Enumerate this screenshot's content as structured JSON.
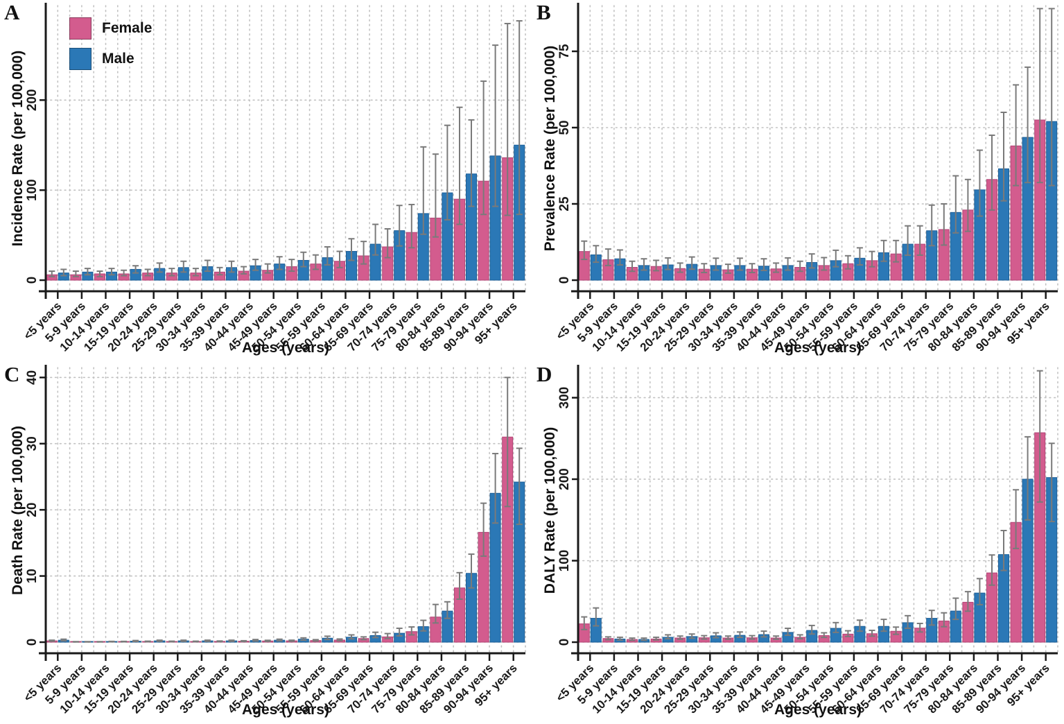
{
  "figure": {
    "panels": [
      {
        "letter": "A"
      },
      {
        "letter": "B"
      },
      {
        "letter": "C"
      },
      {
        "letter": "D"
      }
    ],
    "legend": {
      "items": [
        {
          "label": "Female",
          "color": "#d35c8e"
        },
        {
          "label": "Male",
          "color": "#2b78b6"
        }
      ]
    },
    "colors": {
      "female": "#d35c8e",
      "female_border": "#b34677",
      "male": "#2b78b6",
      "male_border": "#1d5f98",
      "error_bar": "#7a7a7a",
      "gridline": "#c2c2c2",
      "axis": "#1a1a1a"
    }
  },
  "chart_data": [
    {
      "type": "bar",
      "panel": "A",
      "xlabel": "Ages (years)",
      "ylabel": "Incidence Rate (per 100,000)",
      "categories": [
        "<5 years",
        "5-9 years",
        "10-14 years",
        "15-19 years",
        "20-24 years",
        "25-29 years",
        "30-34 years",
        "35-39 years",
        "40-44 years",
        "45-49 years",
        "50-54 years",
        "55-59 years",
        "60-64 years",
        "65-69 years",
        "70-74 years",
        "75-79 years",
        "80-84 years",
        "85-89 years",
        "90-94 years",
        "95+ years"
      ],
      "yticks": [
        0,
        100,
        200
      ],
      "ylim": [
        0,
        305
      ],
      "grid": true,
      "legend_position": "top-left-inside",
      "series": [
        {
          "name": "Female",
          "values": [
            6,
            6,
            7,
            7,
            8,
            8,
            8,
            9,
            10,
            11,
            15,
            18,
            21,
            27,
            37,
            53,
            69,
            90,
            110,
            136
          ],
          "err_lo": [
            4,
            4,
            4,
            5,
            5,
            5,
            5,
            6,
            7,
            8,
            10,
            12,
            14,
            18,
            25,
            36,
            48,
            62,
            73,
            72
          ],
          "err_hi": [
            10,
            10,
            10,
            11,
            12,
            13,
            13,
            14,
            15,
            18,
            23,
            28,
            32,
            43,
            57,
            84,
            140,
            192,
            221,
            285
          ]
        },
        {
          "name": "Male",
          "values": [
            8,
            9,
            9,
            12,
            13,
            14,
            15,
            14,
            16,
            18,
            22,
            25,
            32,
            40,
            55,
            74,
            97,
            118,
            138,
            150
          ],
          "err_lo": [
            5,
            6,
            6,
            8,
            9,
            9,
            10,
            9,
            11,
            12,
            15,
            17,
            22,
            28,
            38,
            51,
            67,
            82,
            82,
            73
          ],
          "err_hi": [
            12,
            13,
            13,
            16,
            19,
            21,
            22,
            21,
            23,
            26,
            31,
            37,
            46,
            62,
            83,
            148,
            172,
            178,
            261,
            288
          ]
        }
      ]
    },
    {
      "type": "bar",
      "panel": "B",
      "xlabel": "Ages (years)",
      "ylabel": "Prevalence Rate (per 100,000)",
      "categories": [
        "<5 years",
        "5-9 years",
        "10-14 years",
        "15-19 years",
        "20-24 years",
        "25-29 years",
        "30-34 years",
        "35-39 years",
        "40-44 years",
        "45-49 years",
        "50-54 years",
        "55-59 years",
        "60-64 years",
        "65-69 years",
        "70-74 years",
        "75-79 years",
        "80-84 years",
        "85-89 years",
        "90-94 years",
        "95+ years"
      ],
      "yticks": [
        0,
        25,
        50,
        75
      ],
      "ylim": [
        0,
        90
      ],
      "grid": true,
      "legend_position": "none",
      "series": [
        {
          "name": "Female",
          "values": [
            9.4,
            6.7,
            4.2,
            4.5,
            3.8,
            3.6,
            3.4,
            3.6,
            3.7,
            4.2,
            4.8,
            5.4,
            6.4,
            8.6,
            11.8,
            16.6,
            23,
            33,
            44,
            52.5
          ],
          "err_lo": [
            6.8,
            4.8,
            2.9,
            3.1,
            2.6,
            2.5,
            2.3,
            2.5,
            2.6,
            2.9,
            3.3,
            3.7,
            4.4,
            6,
            8.2,
            11.5,
            16,
            23,
            31,
            32
          ],
          "err_hi": [
            12.8,
            10.2,
            6.2,
            6.5,
            5.6,
            5.4,
            5.2,
            5.4,
            5.6,
            6.2,
            7.4,
            8,
            9.4,
            13,
            17.8,
            25,
            33,
            47.5,
            64,
            89
          ]
        },
        {
          "name": "Male",
          "values": [
            8.3,
            7,
            4.8,
            5,
            5.2,
            4.8,
            4.8,
            4.6,
            4.8,
            5.8,
            6.4,
            7.2,
            9,
            11.8,
            16.2,
            22.2,
            29.6,
            36.5,
            46.8,
            52
          ],
          "err_lo": [
            5.9,
            5,
            3.3,
            3.5,
            3.6,
            3.3,
            3.3,
            3.2,
            3.3,
            4,
            4.4,
            5,
            6.2,
            8.2,
            11.3,
            15.5,
            21,
            26,
            32,
            31
          ],
          "err_hi": [
            11.3,
            9.9,
            7,
            7.3,
            7.6,
            7.2,
            7.2,
            7,
            7.3,
            8.6,
            9.8,
            10.6,
            13,
            17.8,
            24.6,
            34.2,
            42.6,
            55,
            69.8,
            89
          ]
        }
      ]
    },
    {
      "type": "bar",
      "panel": "C",
      "xlabel": "Ages (years)",
      "ylabel": "Death Rate (per 100,000)",
      "categories": [
        "<5 years",
        "5-9 years",
        "10-14 years",
        "15-19 years",
        "20-24 years",
        "25-29 years",
        "30-34 years",
        "35-39 years",
        "40-44 years",
        "45-49 years",
        "50-54 years",
        "55-59 years",
        "60-64 years",
        "65-69 years",
        "70-74 years",
        "75-79 years",
        "80-84 years",
        "85-89 years",
        "90-94 years",
        "95+ years"
      ],
      "yticks": [
        0,
        10,
        20,
        30,
        40
      ],
      "ylim": [
        0,
        41.5
      ],
      "grid": true,
      "legend_position": "none",
      "series": [
        {
          "name": "Female",
          "values": [
            0.2,
            0.05,
            0.05,
            0.08,
            0.1,
            0.1,
            0.1,
            0.12,
            0.15,
            0.18,
            0.2,
            0.25,
            0.32,
            0.55,
            0.8,
            1.6,
            3.8,
            8.2,
            16.6,
            31
          ],
          "err_lo": [
            0.15,
            0.03,
            0.03,
            0.05,
            0.07,
            0.07,
            0.07,
            0.08,
            0.1,
            0.12,
            0.14,
            0.17,
            0.22,
            0.38,
            0.55,
            1.1,
            2.9,
            6.5,
            13,
            20.5
          ],
          "err_hi": [
            0.3,
            0.08,
            0.08,
            0.12,
            0.15,
            0.15,
            0.15,
            0.18,
            0.22,
            0.28,
            0.3,
            0.38,
            0.48,
            0.8,
            1.3,
            2.3,
            5.7,
            10.5,
            21,
            40
          ]
        },
        {
          "name": "Male",
          "values": [
            0.3,
            0.05,
            0.08,
            0.15,
            0.2,
            0.2,
            0.2,
            0.2,
            0.25,
            0.3,
            0.45,
            0.6,
            0.75,
            1,
            1.35,
            2.35,
            4.7,
            10.4,
            22.5,
            24.2
          ],
          "err_lo": [
            0.2,
            0.03,
            0.05,
            0.1,
            0.13,
            0.13,
            0.13,
            0.13,
            0.17,
            0.2,
            0.3,
            0.4,
            0.5,
            0.7,
            0.95,
            1.7,
            3.6,
            8.2,
            18,
            17.8
          ],
          "err_hi": [
            0.45,
            0.08,
            0.12,
            0.25,
            0.3,
            0.3,
            0.3,
            0.3,
            0.4,
            0.45,
            0.65,
            0.9,
            1.1,
            1.5,
            2.1,
            3.3,
            6.1,
            13.3,
            28.5,
            29.3
          ]
        }
      ]
    },
    {
      "type": "bar",
      "panel": "D",
      "xlabel": "Ages (years)",
      "ylabel": "DALY Rate (per 100,000)",
      "categories": [
        "<5 years",
        "5-9 years",
        "10-14 years",
        "15-19 years",
        "20-24 years",
        "25-29 years",
        "30-34 years",
        "35-39 years",
        "40-44 years",
        "45-49 years",
        "50-54 years",
        "55-59 years",
        "60-64 years",
        "65-69 years",
        "70-74 years",
        "75-79 years",
        "80-84 years",
        "85-89 years",
        "90-94 years",
        "95+ years"
      ],
      "yticks": [
        0,
        100,
        200,
        300
      ],
      "ylim": [
        0,
        337
      ],
      "grid": true,
      "legend_position": "none",
      "series": [
        {
          "name": "Female",
          "values": [
            22.5,
            4.5,
            3.3,
            3.9,
            5.1,
            5.4,
            5.1,
            5.4,
            5.1,
            6,
            8.1,
            9.9,
            10.4,
            13.4,
            17.3,
            26,
            49,
            85,
            147,
            257
          ],
          "err_lo": [
            15.5,
            3,
            2.2,
            2.7,
            3.6,
            3.8,
            3.6,
            3.8,
            3.6,
            4.2,
            5.8,
            7,
            7.4,
            9.6,
            12.5,
            19,
            38,
            70,
            115,
            172
          ],
          "err_hi": [
            31,
            6.5,
            5,
            6,
            7.5,
            8,
            7.5,
            8,
            7.5,
            9,
            11.5,
            14,
            14.5,
            18.5,
            23,
            36,
            62,
            107,
            187,
            333
          ]
        },
        {
          "name": "Male",
          "values": [
            29.3,
            3.9,
            3.3,
            6,
            6.9,
            7.8,
            8.4,
            9.3,
            12,
            14.4,
            17,
            19.4,
            19.4,
            23.9,
            29.3,
            38.2,
            60.3,
            107.5,
            200,
            202
          ],
          "err_lo": [
            20,
            2.7,
            2.2,
            4.2,
            4.8,
            5.5,
            5.9,
            6.5,
            8.5,
            10,
            12,
            13.5,
            13.5,
            17,
            21,
            28,
            46,
            88,
            150,
            148
          ],
          "err_hi": [
            42,
            6,
            5,
            9,
            10,
            11.5,
            12.5,
            13.5,
            17,
            20.5,
            24,
            27,
            28,
            32.5,
            39,
            54,
            78,
            137,
            252,
            244
          ]
        }
      ]
    }
  ]
}
